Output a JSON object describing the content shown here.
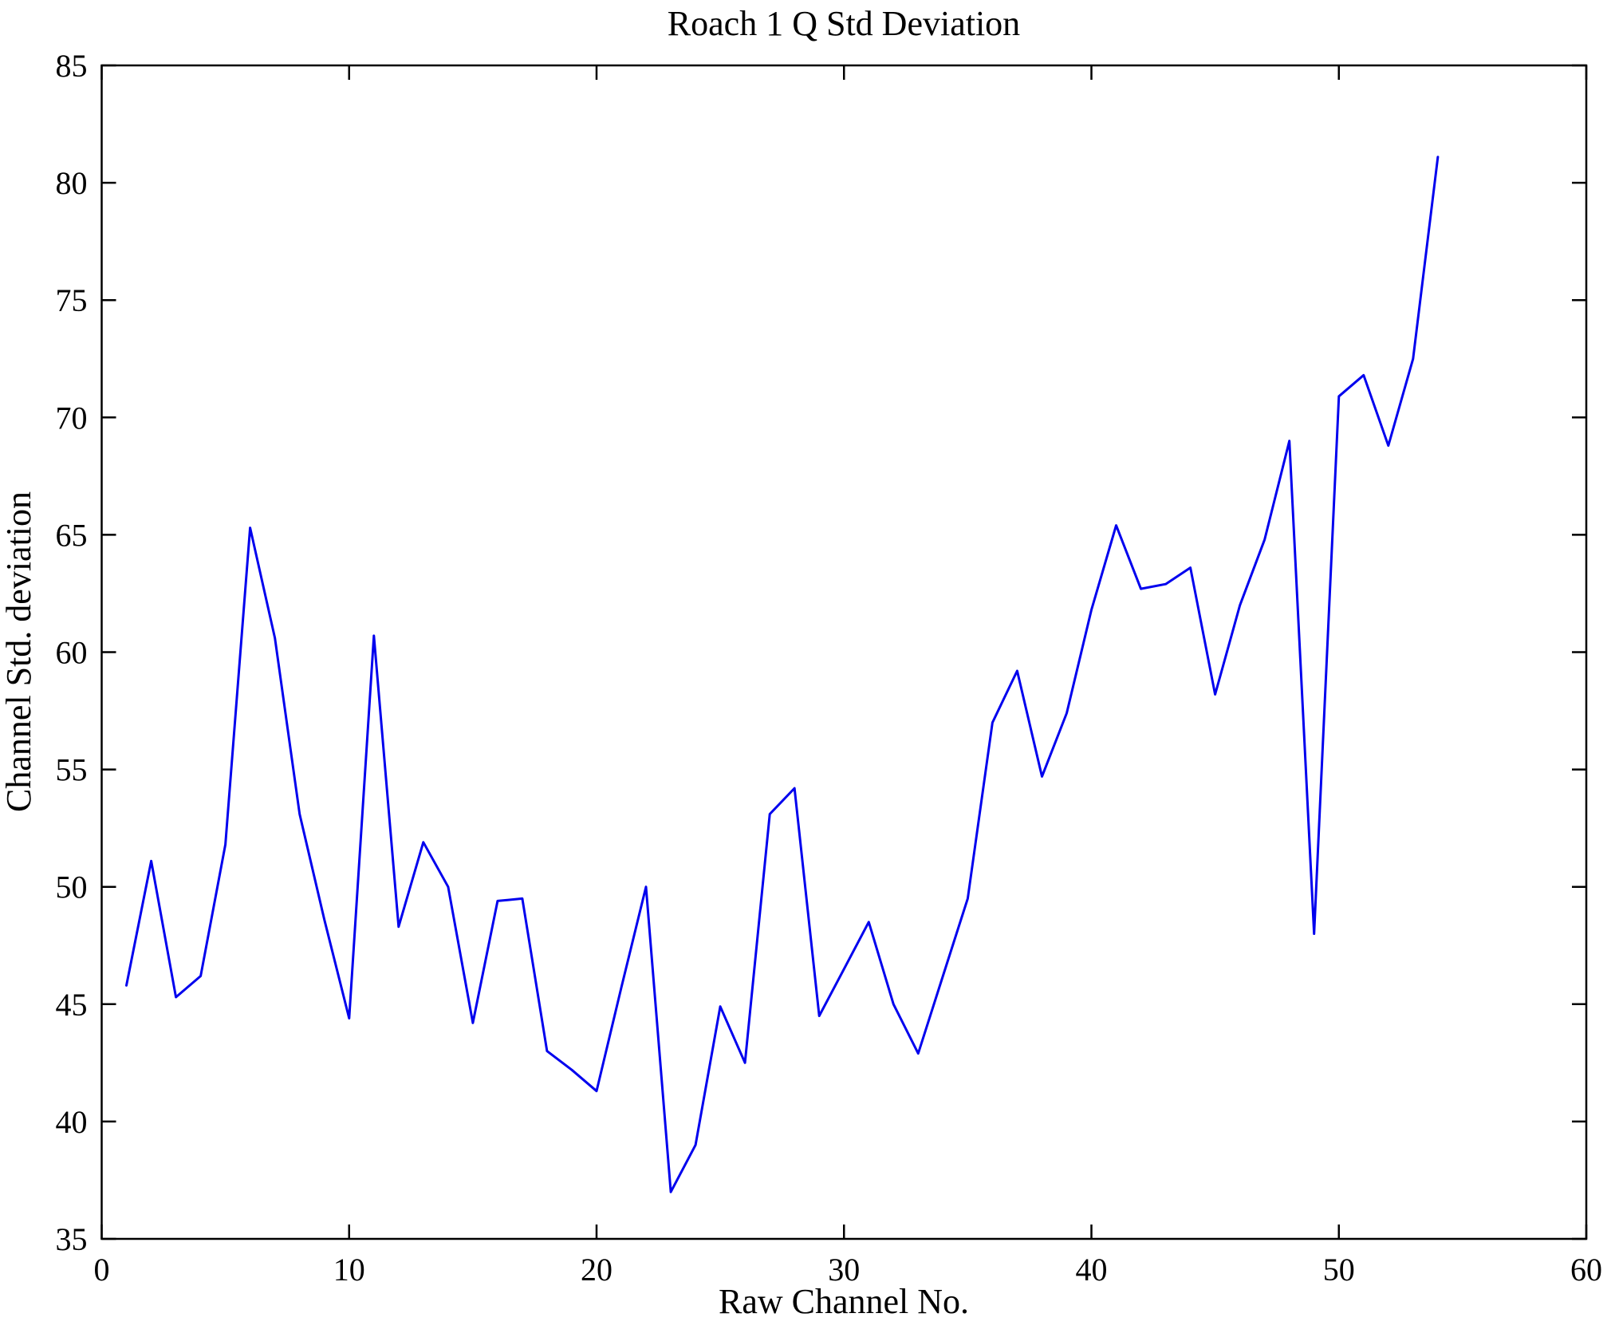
{
  "figure": {
    "background": "#ffffff",
    "axis_color": "#000000",
    "text_color": "#000000"
  },
  "chart_data": {
    "type": "line",
    "title": "Roach 1 Q Std Deviation",
    "xlabel": "Raw Channel No.",
    "ylabel": "Channel Std. deviation",
    "xlim": [
      0,
      60
    ],
    "ylim": [
      35,
      85
    ],
    "xticks": [
      0,
      10,
      20,
      30,
      40,
      50,
      60
    ],
    "yticks": [
      35,
      40,
      45,
      50,
      55,
      60,
      65,
      70,
      75,
      80,
      85
    ],
    "grid": false,
    "legend": null,
    "line_color": "#0000ee",
    "line_width": 3,
    "x": [
      1,
      2,
      3,
      4,
      5,
      6,
      7,
      8,
      9,
      10,
      11,
      12,
      13,
      14,
      15,
      16,
      17,
      18,
      19,
      20,
      21,
      22,
      23,
      24,
      25,
      26,
      27,
      28,
      29,
      30,
      31,
      32,
      33,
      34,
      35,
      36,
      37,
      38,
      39,
      40,
      41,
      42,
      43,
      44,
      45,
      46,
      47,
      48,
      49,
      50,
      51,
      52,
      53,
      54
    ],
    "values": [
      45.8,
      51.1,
      45.3,
      46.2,
      51.8,
      65.3,
      60.6,
      53.1,
      48.6,
      44.4,
      60.7,
      48.3,
      51.9,
      50.0,
      44.2,
      49.4,
      49.5,
      43.0,
      42.2,
      41.3,
      45.7,
      50.0,
      37.0,
      39.0,
      44.9,
      42.5,
      53.1,
      54.2,
      44.5,
      46.5,
      48.5,
      45.0,
      42.9,
      46.2,
      49.5,
      57.0,
      59.2,
      54.7,
      57.4,
      61.8,
      65.4,
      62.7,
      62.9,
      63.6,
      58.2,
      62.0,
      64.8,
      69.0,
      48.0,
      70.9,
      71.8,
      68.8,
      72.5,
      81.1
    ]
  }
}
